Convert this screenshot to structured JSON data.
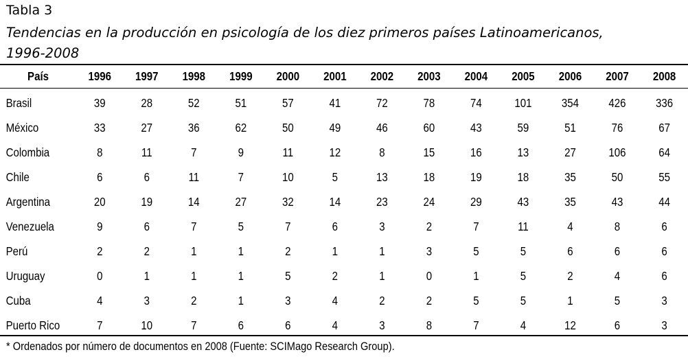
{
  "label": "Tabla 3",
  "title_line1": "Tendencias en la producción en psicología de los diez primeros países Latinoamericanos,",
  "title_line2": "1996-2008",
  "header": {
    "country": "País",
    "years": [
      "1996",
      "1997",
      "1998",
      "1999",
      "2000",
      "2001",
      "2002",
      "2003",
      "2004",
      "2005",
      "2006",
      "2007",
      "2008"
    ]
  },
  "rows": [
    {
      "country": "Brasil",
      "values": [
        "39",
        "28",
        "52",
        "51",
        "57",
        "41",
        "72",
        "78",
        "74",
        "101",
        "354",
        "426",
        "336"
      ]
    },
    {
      "country": "México",
      "values": [
        "33",
        "27",
        "36",
        "62",
        "50",
        "49",
        "46",
        "60",
        "43",
        "59",
        "51",
        "76",
        "67"
      ]
    },
    {
      "country": "Colombia",
      "values": [
        "8",
        "11",
        "7",
        "9",
        "11",
        "12",
        "8",
        "15",
        "16",
        "13",
        "27",
        "106",
        "64"
      ]
    },
    {
      "country": "Chile",
      "values": [
        "6",
        "6",
        "11",
        "7",
        "10",
        "5",
        "13",
        "18",
        "19",
        "18",
        "35",
        "50",
        "55"
      ]
    },
    {
      "country": "Argentina",
      "values": [
        "20",
        "19",
        "14",
        "27",
        "32",
        "14",
        "23",
        "24",
        "29",
        "43",
        "35",
        "43",
        "44"
      ]
    },
    {
      "country": "Venezuela",
      "values": [
        "9",
        "6",
        "7",
        "5",
        "7",
        "6",
        "3",
        "2",
        "7",
        "11",
        "4",
        "8",
        "6"
      ]
    },
    {
      "country": "Perú",
      "values": [
        "2",
        "2",
        "1",
        "1",
        "2",
        "1",
        "1",
        "3",
        "5",
        "5",
        "6",
        "6",
        "6"
      ]
    },
    {
      "country": "Uruguay",
      "values": [
        "0",
        "1",
        "1",
        "1",
        "5",
        "2",
        "1",
        "0",
        "1",
        "5",
        "2",
        "4",
        "6"
      ]
    },
    {
      "country": "Cuba",
      "values": [
        "4",
        "3",
        "2",
        "1",
        "3",
        "4",
        "2",
        "2",
        "5",
        "5",
        "1",
        "5",
        "3"
      ]
    },
    {
      "country": "Puerto Rico",
      "values": [
        "7",
        "10",
        "7",
        "6",
        "6",
        "4",
        "3",
        "8",
        "7",
        "4",
        "12",
        "6",
        "3"
      ]
    }
  ],
  "footnote": "* Ordenados por número de documentos en 2008 (Fuente: SCIMago Research Group)."
}
